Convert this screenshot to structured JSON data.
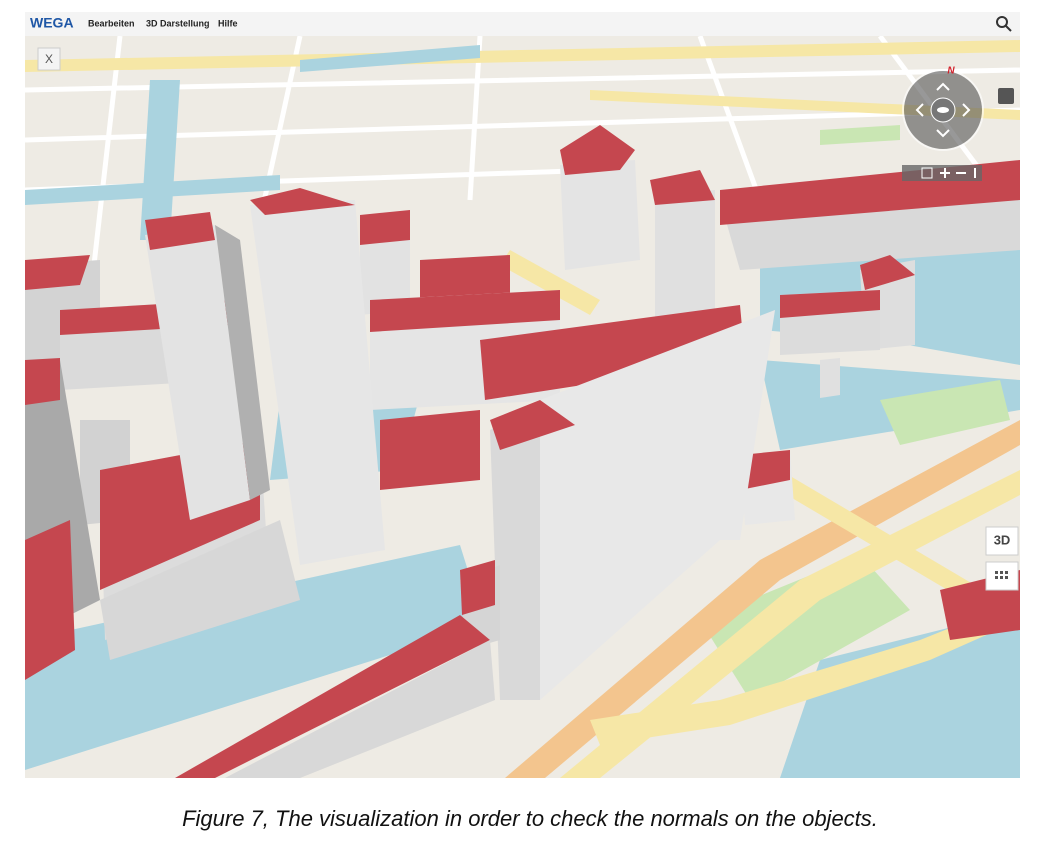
{
  "menu": {
    "logo": "WEGA",
    "items": [
      "Bearbeiten",
      "3D Darstellung",
      "Hilfe"
    ]
  },
  "controls": {
    "close": "X",
    "compass": "N",
    "view_3d": "3D"
  },
  "caption": "Figure 7, The visualization in order to check the normals on the objects."
}
